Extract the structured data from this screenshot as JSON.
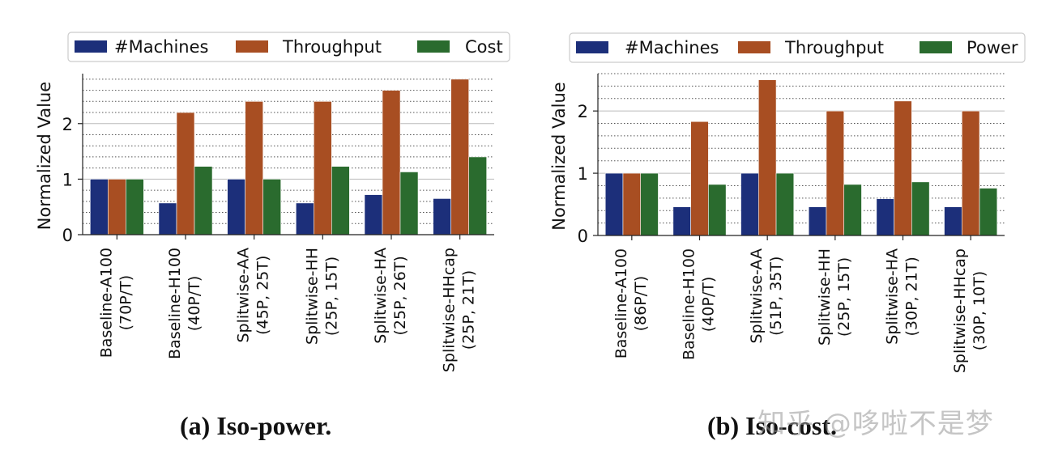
{
  "chart_data": [
    {
      "type": "bar",
      "title": "",
      "xlabel": "",
      "ylabel": "Normalized Value",
      "ylim": [
        0,
        2.9
      ],
      "yticks": [
        0,
        1,
        2
      ],
      "categories": [
        "Baseline-A100\n(70P/T)",
        "Baseline-H100\n(40P/T)",
        "Splitwise-AA\n(45P, 25T)",
        "Splitwise-HH\n(25P, 15T)",
        "Splitwise-HA\n(25P, 26T)",
        "Splitwise-HHcap\n(25P, 21T)"
      ],
      "series": [
        {
          "name": "#Machines",
          "color": "#1c2f7a",
          "values": [
            1.0,
            0.57,
            1.0,
            0.57,
            0.72,
            0.65
          ]
        },
        {
          "name": "Throughput",
          "color": "#a84e22",
          "values": [
            1.0,
            2.2,
            2.4,
            2.4,
            2.6,
            2.8
          ]
        },
        {
          "name": "Cost",
          "color": "#2a6b2e",
          "values": [
            1.0,
            1.23,
            1.0,
            1.23,
            1.13,
            1.4
          ]
        }
      ],
      "legend": "top",
      "grid": "horizontal",
      "caption": "(a) Iso-power."
    },
    {
      "type": "bar",
      "title": "",
      "xlabel": "",
      "ylabel": "Normalized Value",
      "ylim": [
        0,
        2.6
      ],
      "yticks": [
        0,
        1,
        2
      ],
      "categories": [
        "Baseline-A100\n(86P/T)",
        "Baseline-H100\n(40P/T)",
        "Splitwise-AA\n(51P, 35T)",
        "Splitwise-HH\n(25P, 15T)",
        "Splitwise-HA\n(30P, 21T)",
        "Splitwise-HHcap\n(30P, 10T)"
      ],
      "series": [
        {
          "name": "#Machines",
          "color": "#1c2f7a",
          "values": [
            1.0,
            0.46,
            1.0,
            0.46,
            0.59,
            0.46
          ]
        },
        {
          "name": "Throughput",
          "color": "#a84e22",
          "values": [
            1.0,
            1.83,
            2.5,
            2.0,
            2.16,
            2.0
          ]
        },
        {
          "name": "Power",
          "color": "#2a6b2e",
          "values": [
            1.0,
            0.82,
            1.0,
            0.82,
            0.86,
            0.76
          ]
        }
      ],
      "legend": "top",
      "grid": "horizontal",
      "caption": "(b) Iso-cost."
    }
  ],
  "watermark": "知乎 @哆啦不是梦"
}
